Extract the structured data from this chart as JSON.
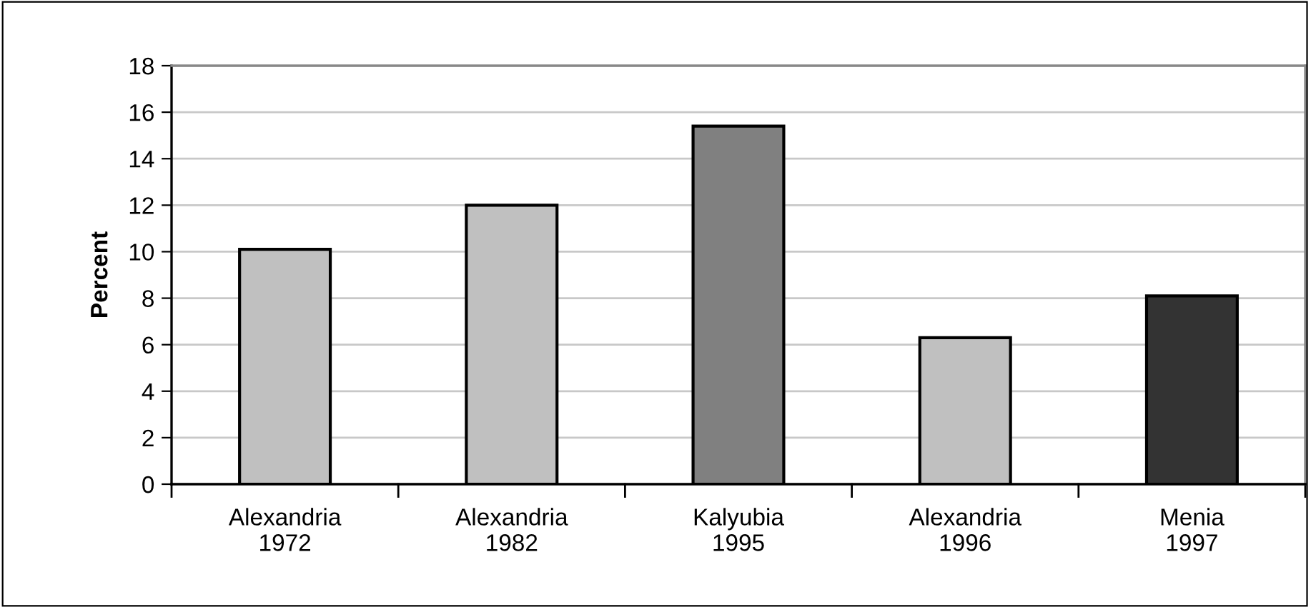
{
  "chart_data": {
    "type": "bar",
    "ylabel": "Percent",
    "categories": [
      "Alexandria\n1972",
      "Alexandria\n1982",
      "Kalyubia\n1995",
      "Alexandria\n1996",
      "Menia\n1997"
    ],
    "values": [
      10.1,
      12,
      15.4,
      6.3,
      8.1
    ],
    "colors": [
      "#c0c0c0",
      "#c0c0c0",
      "#808080",
      "#c0c0c0",
      "#333333"
    ],
    "ylim": [
      0,
      18
    ],
    "yticks": [
      0,
      2,
      4,
      6,
      8,
      10,
      12,
      14,
      16,
      18
    ],
    "grid": "y",
    "legend": false
  }
}
